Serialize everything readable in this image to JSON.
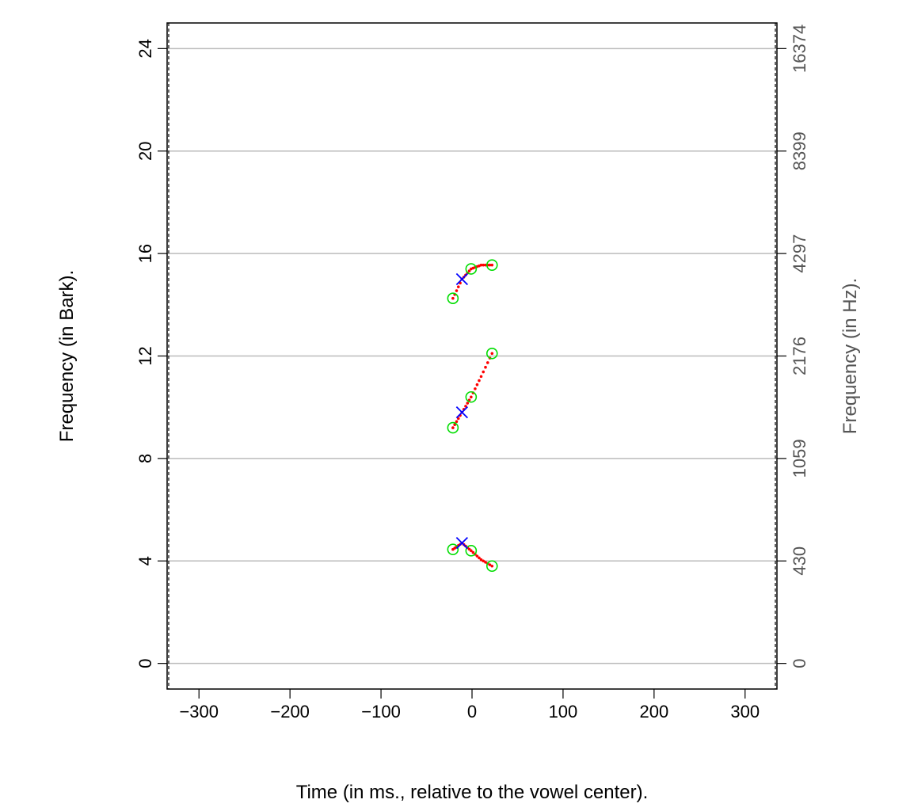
{
  "chart_data": {
    "type": "scatter",
    "xlabel": "Time (in ms., relative to the vowel center).",
    "ylabel": "Frequency (in Bark).",
    "ylabel_right": "Frequency (in Hz).",
    "xlim": [
      -335,
      335
    ],
    "ylim": [
      -1,
      25
    ],
    "x_ticks": [
      -300,
      -200,
      -100,
      0,
      100,
      200,
      300
    ],
    "x_tick_labels": [
      "−300",
      "−200",
      "−100",
      "0",
      "100",
      "200",
      "300"
    ],
    "y_ticks": [
      0,
      4,
      8,
      12,
      16,
      20,
      24
    ],
    "y_tick_labels": [
      "0",
      "4",
      "8",
      "12",
      "16",
      "20",
      "24"
    ],
    "y_right_tick_labels": [
      "0",
      "430",
      "1059",
      "2176",
      "4297",
      "8399",
      "16374"
    ],
    "grid": "horizontal",
    "colors": {
      "trajectory": "#ff0000",
      "measurement_circle": "#00dd00",
      "target_cross": "#0000ff",
      "gridline": "#bbbbbb",
      "right_axis": "#555555"
    },
    "series": [
      {
        "markers": [
          {
            "x": -21,
            "y": 4.45
          },
          {
            "x": -1,
            "y": 4.4
          },
          {
            "x": 22,
            "y": 3.8
          }
        ],
        "target": {
          "x": -11,
          "y": 4.7
        },
        "trajectory": [
          {
            "x": -21,
            "y": 4.45
          },
          {
            "x": -11,
            "y": 4.7
          },
          {
            "x": -1,
            "y": 4.4
          },
          {
            "x": 10,
            "y": 4.05
          },
          {
            "x": 22,
            "y": 3.8
          }
        ]
      },
      {
        "markers": [
          {
            "x": -21,
            "y": 9.2
          },
          {
            "x": -1,
            "y": 10.4
          },
          {
            "x": 22,
            "y": 12.1
          }
        ],
        "target": {
          "x": -11,
          "y": 9.8
        },
        "trajectory": [
          {
            "x": -21,
            "y": 9.2
          },
          {
            "x": -11,
            "y": 9.8
          },
          {
            "x": -1,
            "y": 10.4
          },
          {
            "x": 10,
            "y": 11.2
          },
          {
            "x": 22,
            "y": 12.1
          }
        ]
      },
      {
        "markers": [
          {
            "x": -21,
            "y": 14.25
          },
          {
            "x": -1,
            "y": 15.4
          },
          {
            "x": 22,
            "y": 15.55
          }
        ],
        "target": {
          "x": -11,
          "y": 15.0
        },
        "trajectory": [
          {
            "x": -21,
            "y": 14.25
          },
          {
            "x": -11,
            "y": 15.0
          },
          {
            "x": -1,
            "y": 15.4
          },
          {
            "x": 10,
            "y": 15.55
          },
          {
            "x": 22,
            "y": 15.55
          }
        ]
      }
    ]
  }
}
